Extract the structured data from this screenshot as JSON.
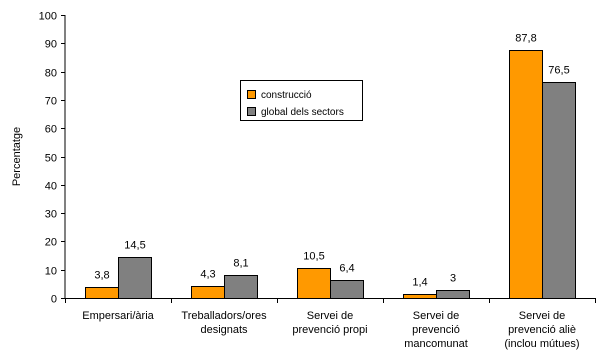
{
  "chart_data": {
    "type": "bar",
    "title": "",
    "xlabel": "",
    "ylabel": "Percentatge",
    "ylim": [
      0,
      100
    ],
    "y_ticks": [
      0,
      10,
      20,
      30,
      40,
      50,
      60,
      70,
      80,
      90,
      100
    ],
    "categories": [
      [
        "Empersari/ària"
      ],
      [
        "Treballadors/ores",
        "designats"
      ],
      [
        "Servei de",
        "prevenció propi"
      ],
      [
        "Servei de",
        "prevenció",
        "mancomunat"
      ],
      [
        "Servei de",
        "prevenció aliè",
        "(inclou mútues)"
      ]
    ],
    "series": [
      {
        "name": "construcció",
        "color": "#FF9900",
        "values": [
          3.8,
          4.3,
          10.5,
          1.4,
          87.8
        ],
        "labels": [
          "3,8",
          "4,3",
          "10,5",
          "1,4",
          "87,8"
        ]
      },
      {
        "name": "global dels sectors",
        "color": "#808080",
        "values": [
          14.5,
          8.1,
          6.4,
          3,
          76.5
        ],
        "labels": [
          "14,5",
          "8,1",
          "6,4",
          "3",
          "76,5"
        ]
      }
    ],
    "grid": false,
    "legend_position": "center"
  }
}
